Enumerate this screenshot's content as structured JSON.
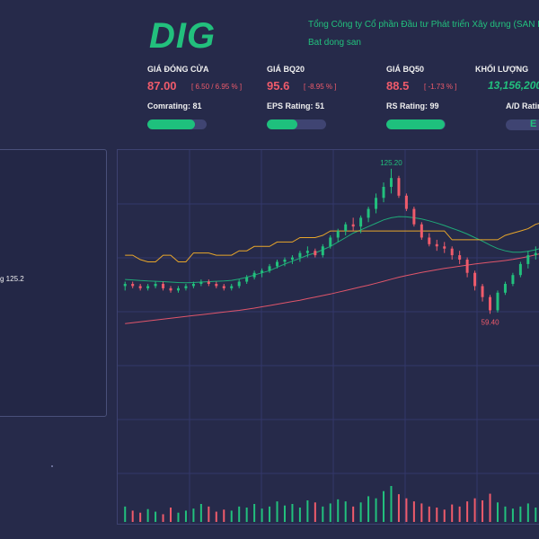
{
  "header": {
    "ticker": "DIG",
    "company": "Tổng Công ty Cổ phần Đầu tư Phát triển Xây dựng (SAN HOSE)",
    "industry": "Bat dong san"
  },
  "stats": {
    "close": {
      "label": "GIÁ ĐÓNG CỬA",
      "value": "87.00",
      "change": "[ 6.50 / 6.95 % ]"
    },
    "ma20": {
      "label": "GIÁ BQ20",
      "value": "95.6",
      "change": "[ -8.95 % ]"
    },
    "ma50": {
      "label": "GIÁ BQ50",
      "value": "88.5",
      "change": "[ -1.73 % ]"
    },
    "volume": {
      "label": "KHỐI LƯỢNG",
      "value": "13,156,200"
    }
  },
  "ratings": {
    "comrating": {
      "label": "Comrating: 81",
      "fill": 0.81
    },
    "eps": {
      "label": "EPS Rating: 51",
      "fill": 0.51
    },
    "rs": {
      "label": "RS Rating: 99",
      "fill": 0.99
    },
    "ad": {
      "label": "A/D Rating",
      "letter": "E"
    }
  },
  "side_panel": {
    "text": "g 125.2"
  },
  "chart_data": {
    "type": "candlestick",
    "annotations": {
      "high_label": "125.20",
      "low_label": "59.40"
    },
    "colors": {
      "up": "#22c07d",
      "down": "#ef5b6b",
      "ma_fast": "#1faa78",
      "ma_slow": "#e0556a",
      "price_line": "#e8a62a",
      "grid": "#33386a"
    },
    "candles": [
      [
        72,
        74,
        70,
        73
      ],
      [
        73,
        74,
        71,
        72
      ],
      [
        72,
        73,
        70,
        71
      ],
      [
        71,
        73,
        70,
        72
      ],
      [
        72,
        74,
        71,
        73
      ],
      [
        73,
        74,
        70,
        71
      ],
      [
        71,
        72,
        69,
        70
      ],
      [
        70,
        72,
        69,
        71
      ],
      [
        71,
        73,
        70,
        72
      ],
      [
        72,
        74,
        71,
        73
      ],
      [
        73,
        75,
        72,
        74
      ],
      [
        74,
        75,
        72,
        73
      ],
      [
        73,
        74,
        71,
        72
      ],
      [
        72,
        73,
        70,
        71
      ],
      [
        71,
        73,
        70,
        72
      ],
      [
        72,
        75,
        71,
        74
      ],
      [
        74,
        77,
        73,
        76
      ],
      [
        76,
        79,
        75,
        78
      ],
      [
        78,
        80,
        76,
        79
      ],
      [
        79,
        82,
        78,
        81
      ],
      [
        81,
        84,
        80,
        83
      ],
      [
        83,
        85,
        81,
        84
      ],
      [
        84,
        86,
        82,
        85
      ],
      [
        85,
        88,
        83,
        87
      ],
      [
        87,
        90,
        85,
        88
      ],
      [
        88,
        89,
        85,
        86
      ],
      [
        86,
        91,
        85,
        90
      ],
      [
        90,
        95,
        89,
        94
      ],
      [
        94,
        98,
        92,
        97
      ],
      [
        97,
        101,
        95,
        100
      ],
      [
        100,
        103,
        97,
        99
      ],
      [
        99,
        104,
        96,
        103
      ],
      [
        103,
        108,
        101,
        107
      ],
      [
        107,
        114,
        105,
        112
      ],
      [
        112,
        119,
        110,
        117
      ],
      [
        117,
        125.2,
        114,
        121
      ],
      [
        121,
        122,
        112,
        113
      ],
      [
        113,
        114,
        106,
        107
      ],
      [
        107,
        108,
        99,
        100
      ],
      [
        100,
        101,
        93,
        94
      ],
      [
        94,
        96,
        90,
        91
      ],
      [
        91,
        93,
        88,
        90
      ],
      [
        90,
        92,
        87,
        89
      ],
      [
        89,
        90,
        84,
        86
      ],
      [
        86,
        88,
        82,
        84
      ],
      [
        84,
        85,
        76,
        78
      ],
      [
        78,
        79,
        70,
        72
      ],
      [
        72,
        73,
        65,
        67
      ],
      [
        67,
        68,
        59.4,
        61
      ],
      [
        61,
        70,
        60,
        69
      ],
      [
        69,
        74,
        68,
        73
      ],
      [
        73,
        78,
        72,
        77
      ],
      [
        77,
        83,
        76,
        82
      ],
      [
        82,
        88,
        80,
        86
      ],
      [
        86,
        90,
        84,
        87
      ],
      [
        87,
        92,
        85,
        91
      ]
    ],
    "volumes": [
      30,
      22,
      18,
      25,
      20,
      15,
      28,
      18,
      22,
      26,
      35,
      30,
      20,
      24,
      22,
      30,
      28,
      35,
      26,
      30,
      40,
      32,
      35,
      28,
      42,
      38,
      30,
      36,
      44,
      40,
      30,
      38,
      50,
      46,
      60,
      70,
      54,
      46,
      40,
      36,
      30,
      28,
      24,
      34,
      30,
      40,
      46,
      42,
      55,
      38,
      30,
      26,
      30,
      36,
      28,
      32
    ],
    "ma_fast": [
      75,
      74.8,
      74.5,
      74.3,
      74.2,
      74,
      73.8,
      73.6,
      73.5,
      73.6,
      73.8,
      74,
      74.2,
      74.3,
      74.6,
      75.2,
      76,
      77,
      78,
      79,
      80.5,
      82,
      83.3,
      84.6,
      86,
      87,
      88.5,
      90,
      92,
      94,
      96,
      97.5,
      99,
      100.5,
      102,
      103,
      103.5,
      103.4,
      103,
      102.4,
      101.6,
      100.6,
      99.5,
      98.2,
      97,
      95.6,
      94,
      92.4,
      90.6,
      89,
      88,
      87.4,
      87.4,
      87.8,
      88.5,
      89.4
    ],
    "ma_slow": [
      55,
      55.4,
      55.8,
      56.2,
      56.6,
      57,
      57.4,
      57.8,
      58.2,
      58.6,
      59,
      59.4,
      59.8,
      60.2,
      60.6,
      61,
      61.5,
      62,
      62.6,
      63.2,
      63.8,
      64.4,
      65,
      65.6,
      66.3,
      67,
      67.7,
      68.4,
      69.2,
      70,
      70.8,
      71.6,
      72.4,
      73.3,
      74.2,
      75.1,
      76,
      76.8,
      77.5,
      78.2,
      78.8,
      79.4,
      80,
      80.5,
      81,
      81.5,
      82,
      82.4,
      82.8,
      83.2,
      83.6,
      84.1,
      84.7,
      85.4,
      86.2,
      87
    ],
    "price_line": [
      86,
      86,
      84,
      83,
      83,
      86,
      86,
      83,
      83,
      87,
      87,
      87,
      86,
      86,
      86,
      88,
      88,
      90,
      90,
      90,
      92,
      92,
      92,
      94,
      94,
      94,
      95,
      97,
      97,
      97,
      97,
      97,
      97,
      97,
      97,
      97,
      97,
      97,
      97,
      97,
      97,
      97,
      97,
      93,
      93,
      93,
      93,
      93,
      93,
      93,
      95,
      96,
      97,
      98,
      100,
      101
    ]
  }
}
